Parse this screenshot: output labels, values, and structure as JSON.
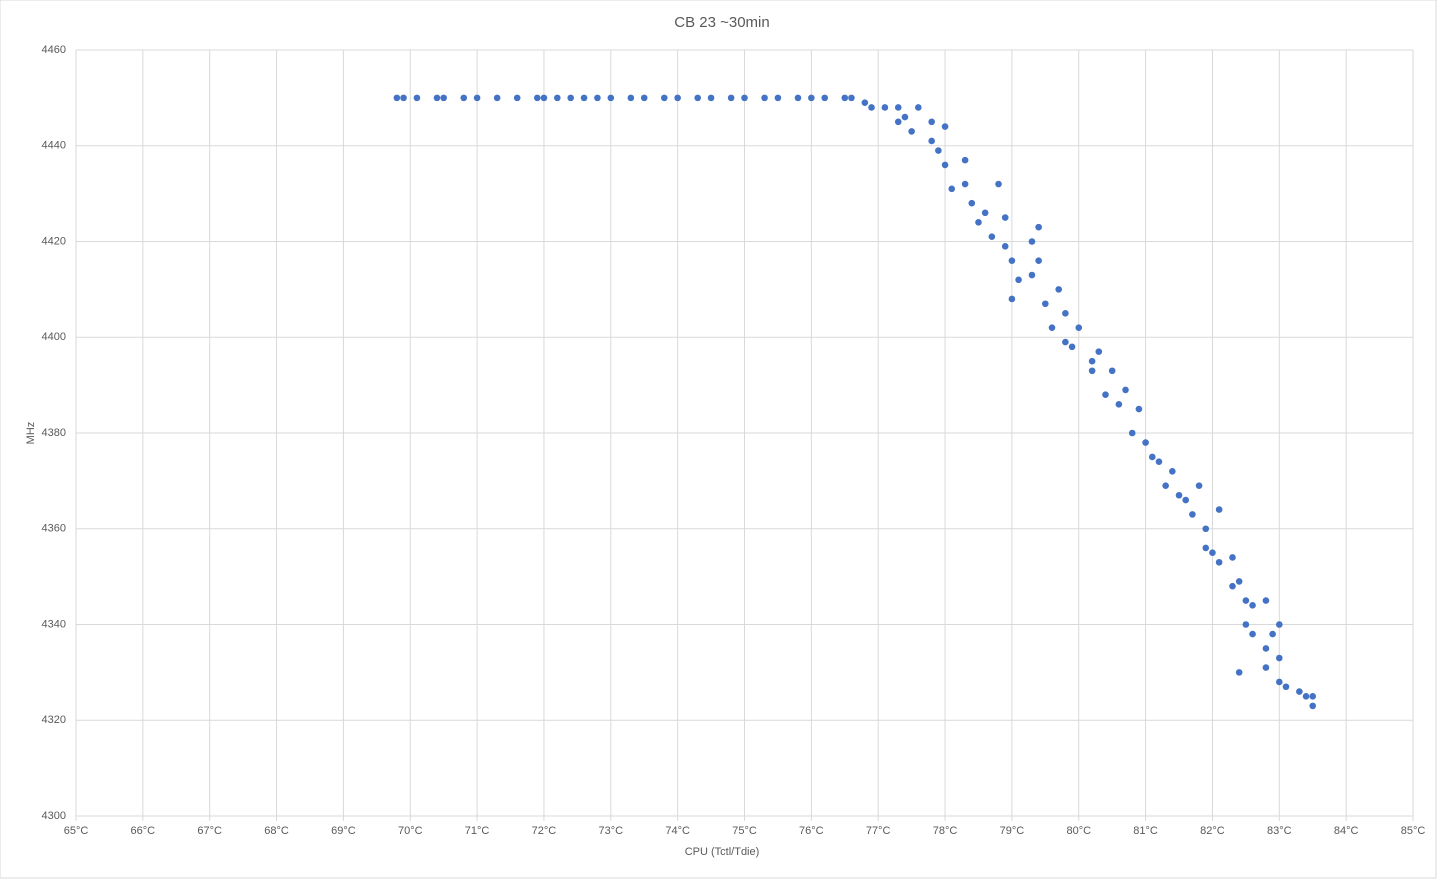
{
  "chart_data": {
    "type": "scatter",
    "title": "CB 23 ~30min",
    "x_label": "CPU (Tctl/Tdie)",
    "y_label": "MHz",
    "color": "#4472c4",
    "grid": true,
    "xlim": [
      65,
      85
    ],
    "ylim": [
      4300,
      4460
    ],
    "xticks": [
      {
        "value": 65,
        "label": "65°C"
      },
      {
        "value": 66,
        "label": "66°C"
      },
      {
        "value": 67,
        "label": "67°C"
      },
      {
        "value": 68,
        "label": "68°C"
      },
      {
        "value": 69,
        "label": "69°C"
      },
      {
        "value": 70,
        "label": "70°C"
      },
      {
        "value": 71,
        "label": "71°C"
      },
      {
        "value": 72,
        "label": "72°C"
      },
      {
        "value": 73,
        "label": "73°C"
      },
      {
        "value": 74,
        "label": "74°C"
      },
      {
        "value": 75,
        "label": "75°C"
      },
      {
        "value": 76,
        "label": "76°C"
      },
      {
        "value": 77,
        "label": "77°C"
      },
      {
        "value": 78,
        "label": "78°C"
      },
      {
        "value": 79,
        "label": "79°C"
      },
      {
        "value": 80,
        "label": "80°C"
      },
      {
        "value": 81,
        "label": "81°C"
      },
      {
        "value": 82,
        "label": "82°C"
      },
      {
        "value": 83,
        "label": "83°C"
      },
      {
        "value": 84,
        "label": "84°C"
      },
      {
        "value": 85,
        "label": "85°C"
      }
    ],
    "yticks": [
      4300,
      4320,
      4340,
      4360,
      4380,
      4400,
      4420,
      4440,
      4460
    ],
    "x": [
      69.8,
      69.9,
      70.1,
      70.4,
      70.5,
      70.8,
      71.0,
      71.3,
      71.6,
      71.9,
      72.0,
      72.2,
      72.4,
      72.6,
      72.8,
      73.0,
      73.3,
      73.5,
      73.8,
      74.0,
      74.3,
      74.5,
      74.8,
      75.0,
      75.3,
      75.5,
      75.8,
      76.0,
      76.2,
      76.5,
      76.6,
      76.8,
      76.9,
      77.1,
      77.3,
      77.3,
      77.4,
      77.5,
      77.6,
      77.8,
      77.8,
      77.9,
      78.0,
      78.0,
      78.1,
      78.3,
      78.3,
      78.4,
      78.5,
      78.6,
      78.7,
      78.8,
      78.9,
      78.9,
      79.0,
      79.0,
      79.1,
      79.3,
      79.3,
      79.4,
      79.4,
      79.5,
      79.6,
      79.7,
      79.8,
      79.8,
      79.9,
      80.0,
      80.2,
      80.2,
      80.3,
      80.4,
      80.5,
      80.6,
      80.7,
      80.8,
      80.9,
      81.0,
      81.1,
      81.2,
      81.3,
      81.4,
      81.5,
      81.6,
      81.7,
      81.8,
      81.9,
      81.9,
      82.0,
      82.1,
      82.1,
      82.3,
      82.3,
      82.4,
      82.4,
      82.5,
      82.5,
      82.6,
      82.6,
      82.8,
      82.8,
      82.8,
      82.9,
      83.0,
      83.0,
      83.0,
      83.1,
      83.3,
      83.4,
      83.5,
      83.5
    ],
    "values": [
      4450,
      4450,
      4450,
      4450,
      4450,
      4450,
      4450,
      4450,
      4450,
      4450,
      4450,
      4450,
      4450,
      4450,
      4450,
      4450,
      4450,
      4450,
      4450,
      4450,
      4450,
      4450,
      4450,
      4450,
      4450,
      4450,
      4450,
      4450,
      4450,
      4450,
      4450,
      4449,
      4448,
      4448,
      4448,
      4445,
      4446,
      4443,
      4448,
      4445,
      4441,
      4439,
      4436,
      4444,
      4431,
      4437,
      4432,
      4428,
      4424,
      4426,
      4421,
      4432,
      4425,
      4419,
      4416,
      4408,
      4412,
      4420,
      4413,
      4423,
      4416,
      4407,
      4402,
      4410,
      4405,
      4399,
      4398,
      4402,
      4395,
      4393,
      4397,
      4388,
      4393,
      4386,
      4389,
      4380,
      4385,
      4378,
      4375,
      4374,
      4369,
      4372,
      4367,
      4366,
      4363,
      4369,
      4360,
      4356,
      4355,
      4364,
      4353,
      4354,
      4348,
      4330,
      4349,
      4345,
      4340,
      4338,
      4344,
      4345,
      4335,
      4331,
      4338,
      4328,
      4340,
      4333,
      4327,
      4326,
      4325,
      4323,
      4325
    ]
  }
}
